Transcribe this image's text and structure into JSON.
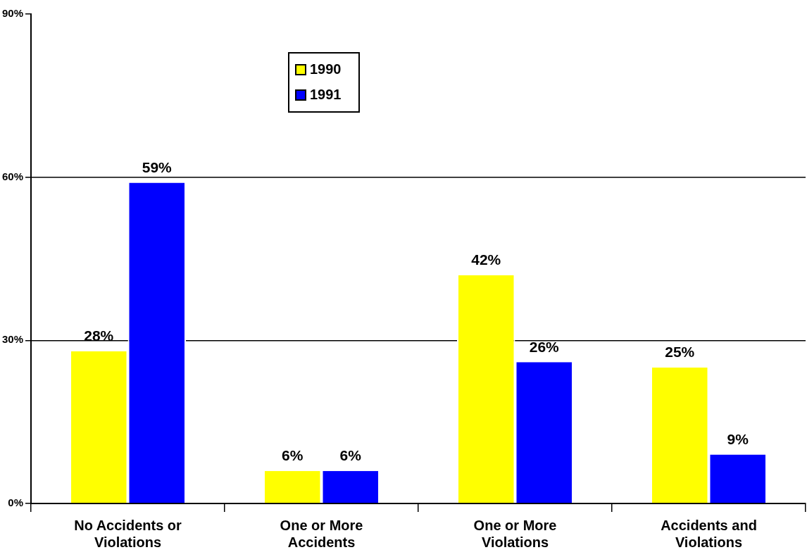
{
  "chart_data": {
    "type": "bar",
    "categories": [
      "No Accidents or Violations",
      "One or More Accidents",
      "One or More Violations",
      "Accidents and Violations"
    ],
    "series": [
      {
        "name": "1990",
        "color": "#ffff00",
        "values": [
          28,
          6,
          42,
          25
        ],
        "value_labels": [
          "28%",
          "6%",
          "42%",
          "25%"
        ]
      },
      {
        "name": "1991",
        "color": "#0000ff",
        "values": [
          59,
          6,
          26,
          9
        ],
        "value_labels": [
          "59%",
          "6%",
          "26%",
          "9%"
        ]
      }
    ],
    "ylim": [
      0,
      90
    ],
    "yticks": [
      {
        "value": 0,
        "label": "0%"
      },
      {
        "value": 30,
        "label": "30%"
      },
      {
        "value": 60,
        "label": "60%"
      },
      {
        "value": 90,
        "label": "90%"
      }
    ],
    "grid": "y",
    "legend": "top"
  }
}
